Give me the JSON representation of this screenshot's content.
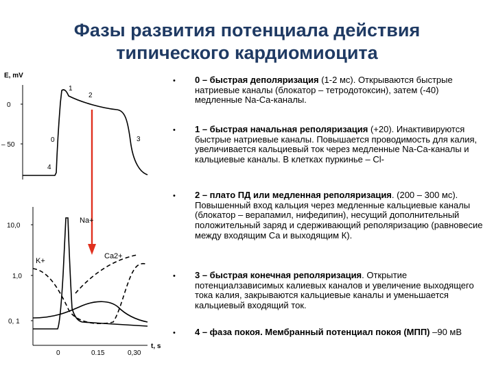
{
  "title": {
    "line1": "Фазы развития потенциала действия",
    "line2": "типического кардиомиоцита"
  },
  "bullet_marker": "•",
  "bullets": [
    {
      "bold": "0 – быстрая деполяризация",
      "text": " (1-2 мс). Открываются быстрые натриевые каналы (блокатор – тетродотоксин), затем (-40) медленные Na-Ca-каналы."
    },
    {
      "bold": "1 – быстрая начальная реполяризация",
      "text": " (+20). Инактивируются быстрые натриевые каналы. Повышается проводимость для калия, увеличивается кальциевый ток через медленные Na-Ca-каналы и кальциевые каналы. В клетках пуркинье – Cl-"
    },
    {
      "bold": "2 – плато ПД или медленная реполяризация",
      "text": ". (200 – 300 мс). Повышенный вход кальция через медленные кальциевые каналы (блокатор – верапамил, нифедипин), несущий дополнительный положительный заряд и сдерживающий реполяризацию (равновесие между входящим Са и выходящим К)."
    },
    {
      "bold": "3 – быстрая  конечная реполяризация",
      "text": ". Открытие потенциалзависимых калиевых каналов и увеличение выходящего тока калия, закрываются кальциевые каналы и уменьшается кальциевый входящий ток."
    },
    {
      "bold": "4 – фаза покоя. Мембранный потенциал покоя (МПП)",
      "text": " –90 мВ"
    }
  ],
  "chart_data": [
    {
      "type": "line",
      "title": "",
      "ylabel": "E, mV",
      "y_ticks": [
        "0",
        "– 50"
      ],
      "phase_labels": [
        "0",
        "1",
        "2",
        "3",
        "4"
      ],
      "series": [
        {
          "name": "",
          "x_ms": [
            0,
            2,
            10,
            40,
            150,
            230,
            280,
            320
          ],
          "values_mV": [
            -90,
            25,
            5,
            0,
            -10,
            -40,
            -85,
            -90
          ]
        }
      ]
    },
    {
      "type": "line",
      "title": "",
      "xlabel": "t, s",
      "x_ticks": [
        "0",
        "0.15",
        "0,30"
      ],
      "y_ticks": [
        "10,0",
        "1,0",
        "0, 1"
      ],
      "yscale": "log",
      "series": [
        {
          "name": "Na+",
          "x_s": [
            0.0,
            0.01,
            0.02,
            0.04,
            0.3
          ],
          "values": [
            0.1,
            12,
            0.4,
            0.15,
            0.1
          ]
        },
        {
          "name": "Ca2+",
          "x_s": [
            0.0,
            0.05,
            0.15,
            0.25,
            0.3
          ],
          "values": [
            0.15,
            0.2,
            0.3,
            0.25,
            0.12
          ]
        },
        {
          "name": "K+",
          "x_s": [
            0.0,
            0.05,
            0.15,
            0.25,
            0.3
          ],
          "values": [
            0.8,
            0.2,
            0.12,
            1.0,
            2.0
          ]
        }
      ]
    }
  ],
  "colors": {
    "title": "#1f3a63",
    "arrow": "#e0301e",
    "text": "#000000"
  }
}
